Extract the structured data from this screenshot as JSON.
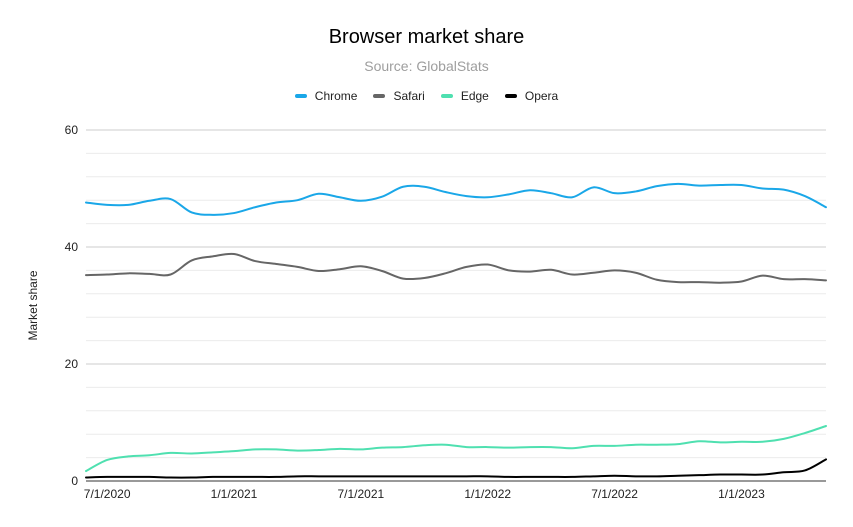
{
  "chart_data": {
    "type": "line",
    "title": "Browser market share",
    "subtitle": "Source: GlobalStats",
    "xlabel": "",
    "ylabel": "Market share",
    "ylim": [
      0,
      60
    ],
    "y_ticks": [
      "0",
      "20",
      "40",
      "60"
    ],
    "x_tick_labels": [
      "7/1/2020",
      "1/1/2021",
      "7/1/2021",
      "1/1/2022",
      "7/1/2022",
      "1/1/2023"
    ],
    "x": [
      "6/2020",
      "7/2020",
      "8/2020",
      "9/2020",
      "10/2020",
      "11/2020",
      "12/2020",
      "1/2021",
      "2/2021",
      "3/2021",
      "4/2021",
      "5/2021",
      "6/2021",
      "7/2021",
      "8/2021",
      "9/2021",
      "10/2021",
      "11/2021",
      "12/2021",
      "1/2022",
      "2/2022",
      "3/2022",
      "4/2022",
      "5/2022",
      "6/2022",
      "7/2022",
      "8/2022",
      "9/2022",
      "10/2022",
      "11/2022",
      "12/2022",
      "1/2023",
      "2/2023",
      "3/2023",
      "4/2023",
      "5/2023"
    ],
    "grid": true,
    "legend_position": "top",
    "series": [
      {
        "name": "Chrome",
        "color": "#1aa7e8",
        "values": [
          47.6,
          47.2,
          47.2,
          47.9,
          48.2,
          45.9,
          45.5,
          45.8,
          46.8,
          47.6,
          48.0,
          49.1,
          48.5,
          47.9,
          48.6,
          50.3,
          50.3,
          49.4,
          48.7,
          48.5,
          49.0,
          49.7,
          49.2,
          48.5,
          50.2,
          49.2,
          49.5,
          50.4,
          50.8,
          50.5,
          50.6,
          50.6,
          50.0,
          49.8,
          48.7,
          46.8
        ]
      },
      {
        "name": "Safari",
        "color": "#666666",
        "values": [
          35.2,
          35.3,
          35.5,
          35.4,
          35.3,
          37.7,
          38.4,
          38.8,
          37.6,
          37.1,
          36.6,
          35.9,
          36.2,
          36.7,
          35.9,
          34.6,
          34.7,
          35.5,
          36.6,
          37.0,
          36.0,
          35.8,
          36.1,
          35.3,
          35.6,
          36.0,
          35.6,
          34.4,
          34.0,
          34.0,
          33.9,
          34.1,
          35.1,
          34.5,
          34.5,
          34.3
        ]
      },
      {
        "name": "Edge",
        "color": "#4fe0b0",
        "values": [
          1.7,
          3.6,
          4.2,
          4.4,
          4.8,
          4.7,
          4.9,
          5.1,
          5.4,
          5.4,
          5.2,
          5.3,
          5.5,
          5.4,
          5.7,
          5.8,
          6.1,
          6.2,
          5.8,
          5.8,
          5.7,
          5.8,
          5.8,
          5.6,
          6.0,
          6.0,
          6.2,
          6.2,
          6.3,
          6.8,
          6.6,
          6.7,
          6.7,
          7.2,
          8.2,
          9.4
        ]
      },
      {
        "name": "Opera",
        "color": "#000000",
        "values": [
          0.6,
          0.7,
          0.7,
          0.7,
          0.6,
          0.6,
          0.7,
          0.7,
          0.7,
          0.7,
          0.8,
          0.8,
          0.8,
          0.8,
          0.8,
          0.8,
          0.8,
          0.8,
          0.8,
          0.8,
          0.7,
          0.7,
          0.7,
          0.7,
          0.8,
          0.9,
          0.8,
          0.8,
          0.9,
          1.0,
          1.1,
          1.1,
          1.1,
          1.5,
          1.8,
          3.7
        ]
      }
    ]
  }
}
